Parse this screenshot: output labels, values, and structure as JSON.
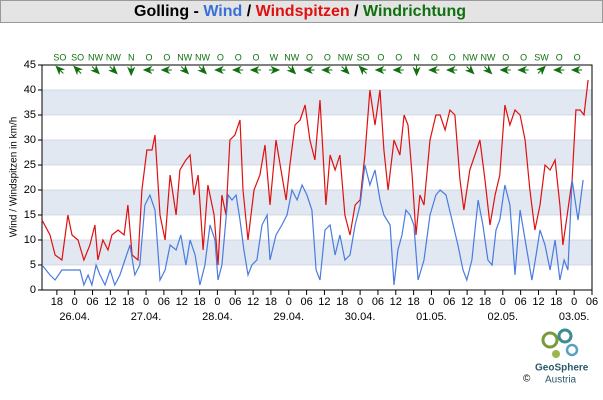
{
  "chart_data": {
    "type": "line",
    "title": [
      {
        "text": "Golling - ",
        "color": "#000000"
      },
      {
        "text": "Wind",
        "color": "#3a6fd8"
      },
      {
        "text": " / ",
        "color": "#000000"
      },
      {
        "text": "Windspitzen",
        "color": "#e01010"
      },
      {
        "text": " / ",
        "color": "#000000"
      },
      {
        "text": "Windrichtung",
        "color": "#107010"
      }
    ],
    "y_label": "Wind / Windspitzen in km/h",
    "ylim": [
      0,
      45
    ],
    "yticks": [
      0,
      5,
      10,
      15,
      20,
      25,
      30,
      35,
      40,
      45
    ],
    "banded_grid": true,
    "xlim": [
      13,
      198
    ],
    "xticks": [
      18,
      {
        "value": 24,
        "label": "0"
      },
      {
        "value": 30,
        "label": "06"
      },
      {
        "value": 36,
        "label": "12"
      },
      {
        "value": 42,
        "label": "18"
      },
      {
        "value": 48,
        "label": "0"
      },
      {
        "value": 54,
        "label": "06"
      },
      {
        "value": 60,
        "label": "12"
      },
      {
        "value": 66,
        "label": "18"
      },
      {
        "value": 72,
        "label": "0"
      },
      {
        "value": 78,
        "label": "06"
      },
      {
        "value": 84,
        "label": "12"
      },
      {
        "value": 90,
        "label": "18"
      },
      {
        "value": 96,
        "label": "0"
      },
      {
        "value": 102,
        "label": "06"
      },
      {
        "value": 108,
        "label": "12"
      },
      {
        "value": 114,
        "label": "18"
      },
      {
        "value": 120,
        "label": "0"
      },
      {
        "value": 126,
        "label": "06"
      },
      {
        "value": 132,
        "label": "12"
      },
      {
        "value": 138,
        "label": "18"
      },
      {
        "value": 144,
        "label": "0"
      },
      {
        "value": 150,
        "label": "06"
      },
      {
        "value": 156,
        "label": "12"
      },
      {
        "value": 162,
        "label": "18"
      },
      {
        "value": 168,
        "label": "0"
      },
      {
        "value": 174,
        "label": "06"
      },
      {
        "value": 180,
        "label": "12"
      },
      {
        "value": 186,
        "label": "18"
      },
      {
        "value": 192,
        "label": "0"
      },
      {
        "value": 198,
        "label": "06"
      }
    ],
    "date_ticks": [
      {
        "value": 24,
        "label": "26.04."
      },
      {
        "value": 48,
        "label": "27.04."
      },
      {
        "value": 72,
        "label": "28.04."
      },
      {
        "value": 96,
        "label": "29.04."
      },
      {
        "value": 120,
        "label": "30.04."
      },
      {
        "value": 144,
        "label": "01.05."
      },
      {
        "value": 168,
        "label": "02.05."
      },
      {
        "value": 192,
        "label": "03.05."
      }
    ],
    "direction": {
      "color": "#107010",
      "x": [
        19,
        25,
        31,
        37,
        43,
        49,
        55,
        61,
        67,
        73,
        79,
        85,
        91,
        97,
        103,
        109,
        115,
        121,
        127,
        133,
        139,
        145,
        151,
        157,
        163,
        169,
        175,
        181,
        187,
        193
      ],
      "labels": [
        "SO",
        "SO",
        "NW",
        "NW",
        "N",
        "O",
        "O",
        "NW",
        "NW",
        "O",
        "O",
        "O",
        "W",
        "NW",
        "O",
        "O",
        "NW",
        "SO",
        "O",
        "O",
        "N",
        "O",
        "O",
        "NW",
        "NW",
        "O",
        "O",
        "SW",
        "O",
        "O"
      ]
    },
    "series": [
      {
        "color": "#e01010",
        "x": [
          13,
          15.7,
          17.4,
          19.7,
          21.7,
          23.1,
          25.1,
          27.1,
          29.1,
          30.8,
          31.8,
          33.5,
          35.2,
          36.5,
          38.6,
          40.6,
          41.9,
          43.3,
          45.3,
          46.6,
          48.3,
          50,
          51,
          52.7,
          54.4,
          56.1,
          58.1,
          59.4,
          61.4,
          62.8,
          64.1,
          65.5,
          67.2,
          68.8,
          70.9,
          72.2,
          73.5,
          74.9,
          76.2,
          77.9,
          79.6,
          80.6,
          82.3,
          84.3,
          86.3,
          88,
          89.7,
          91.7,
          93.4,
          95.1,
          96.4,
          98.1,
          99.8,
          101.5,
          103.1,
          104.8,
          106.5,
          108.5,
          109.9,
          111.6,
          113.2,
          114.9,
          116.6,
          118.3,
          120,
          121.6,
          123.3,
          125,
          126.7,
          128,
          129.4,
          131.4,
          133.4,
          134.8,
          136.1,
          137.5,
          138.8,
          140.1,
          141.5,
          143.5,
          145.5,
          146.9,
          148.6,
          150.2,
          151.9,
          153.6,
          154.9,
          156.9,
          158.6,
          160.3,
          162,
          163.7,
          165.4,
          167,
          168.7,
          170.4,
          172.1,
          173.8,
          175.5,
          177.1,
          178.8,
          180.5,
          182.2,
          183.9,
          185.6,
          187.2,
          188.2,
          189.9,
          191.3,
          192.6,
          194,
          195.3,
          196.7
        ],
        "values": [
          14,
          11,
          7,
          6,
          15,
          11,
          10,
          6,
          9,
          13,
          6,
          10,
          8,
          11,
          12,
          11,
          17,
          7,
          6,
          20,
          28,
          28,
          31,
          15,
          10,
          23,
          15,
          24,
          26,
          27,
          19,
          23,
          8,
          21,
          15,
          5,
          19,
          15,
          30,
          31,
          34,
          20,
          10,
          20,
          23,
          29,
          17,
          30,
          24,
          18,
          25,
          33,
          34,
          37,
          30,
          26,
          38,
          17,
          27,
          24,
          27,
          15,
          11,
          17,
          18,
          27,
          40,
          33,
          40,
          28,
          20,
          30,
          27,
          35,
          33,
          23,
          11,
          19,
          17,
          30,
          35,
          35,
          32,
          36,
          35,
          22,
          16,
          24,
          27,
          30,
          22,
          13,
          19,
          23,
          37,
          33,
          36,
          35,
          30,
          20,
          12,
          17,
          25,
          24,
          26,
          17,
          9,
          16,
          22,
          36,
          36,
          35,
          42
        ]
      },
      {
        "color": "#4a7be0",
        "x": [
          13,
          15.7,
          17.4,
          19.7,
          21.7,
          24.1,
          25.8,
          27.1,
          28.5,
          29.8,
          31.2,
          32.5,
          34.2,
          35.9,
          37.5,
          39.2,
          40.9,
          42.6,
          44.2,
          45.9,
          47.6,
          49.3,
          51,
          52.7,
          54.4,
          56.1,
          58.1,
          59.7,
          61.4,
          62.8,
          64.5,
          66.1,
          67.8,
          69.5,
          71.2,
          72.2,
          73.5,
          75.6,
          76.9,
          78.3,
          79.6,
          80.9,
          82.3,
          83.6,
          85.3,
          87,
          88.7,
          89.7,
          91.7,
          93.7,
          95.4,
          97.1,
          98.8,
          100.5,
          102.1,
          103.8,
          105.2,
          106.5,
          108.2,
          109.9,
          111.6,
          113.2,
          114.9,
          116.6,
          118.3,
          120,
          121.6,
          123.3,
          125,
          126.7,
          128,
          130.1,
          131.4,
          132.7,
          134.1,
          135.4,
          136.8,
          138.1,
          139.5,
          141.5,
          143.5,
          145.5,
          146.9,
          148.9,
          150.9,
          152.9,
          154.6,
          155.9,
          157.6,
          159.7,
          161.3,
          163,
          164.4,
          165.7,
          167,
          168.7,
          170.4,
          172.1,
          173.8,
          175.8,
          177.8,
          179.2,
          180.5,
          182.2,
          183.9,
          185.6,
          187.2,
          188.6,
          189.9,
          191.3,
          193.3,
          195
        ],
        "values": [
          5,
          3,
          2,
          4,
          4,
          4,
          4,
          1,
          3,
          1,
          5,
          3,
          1,
          4,
          1,
          3,
          6,
          9,
          3,
          5,
          17,
          19,
          16,
          2,
          4,
          9,
          8,
          11,
          5,
          10,
          7,
          1,
          5,
          13,
          10,
          2,
          5,
          19,
          18,
          19,
          14,
          8,
          3,
          5,
          6,
          13,
          15,
          6,
          11,
          13,
          15,
          20,
          18,
          21,
          19,
          16,
          4,
          2,
          12,
          13,
          7,
          11,
          6,
          7,
          13,
          17,
          25,
          21,
          24,
          18,
          15,
          13,
          1,
          8,
          11,
          16,
          15,
          13,
          2,
          6,
          15,
          19,
          20,
          19,
          14,
          9,
          4,
          2,
          6,
          18,
          13,
          6,
          5,
          12,
          14,
          21,
          17,
          3,
          16,
          9,
          2,
          7,
          12,
          9,
          4,
          10,
          2,
          6,
          4,
          22,
          14,
          22
        ]
      }
    ]
  },
  "footer": {
    "copyright": "©",
    "brand": "GeoSphere",
    "country": "Austria"
  }
}
